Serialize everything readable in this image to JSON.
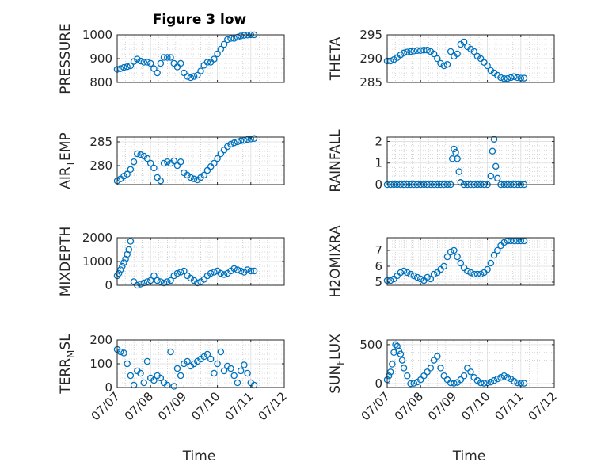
{
  "figure": {
    "title": "Figure 3 low"
  },
  "colors": {
    "marker": "#0072BD",
    "axis": "#262626",
    "grid": "#dfdfdf",
    "minor_grid": "#b8b8b8"
  },
  "chart_data": [
    {
      "type": "scatter",
      "ylabel": "PRESSURE",
      "ylim": [
        800,
        1000
      ],
      "yticks": [
        800,
        900,
        1000
      ],
      "xlim": [
        0,
        5
      ],
      "xticks": [
        0,
        1,
        2,
        3,
        4,
        5
      ],
      "x_tick_labels_shown": false,
      "x": [
        0,
        0.1,
        0.2,
        0.3,
        0.4,
        0.5,
        0.6,
        0.7,
        0.8,
        0.9,
        1.0,
        1.1,
        1.2,
        1.3,
        1.4,
        1.5,
        1.6,
        1.7,
        1.8,
        1.9,
        2.0,
        2.1,
        2.2,
        2.3,
        2.4,
        2.5,
        2.6,
        2.7,
        2.8,
        2.9,
        3.0,
        3.1,
        3.2,
        3.3,
        3.4,
        3.5,
        3.6,
        3.7,
        3.8,
        3.9,
        4.0,
        4.1
      ],
      "values": [
        855,
        858,
        863,
        866,
        870,
        888,
        898,
        890,
        885,
        885,
        880,
        858,
        840,
        880,
        905,
        905,
        905,
        880,
        865,
        880,
        840,
        825,
        820,
        825,
        830,
        848,
        872,
        885,
        885,
        898,
        920,
        940,
        960,
        980,
        985,
        985,
        990,
        995,
        998,
        999,
        1000,
        1000
      ]
    },
    {
      "type": "scatter",
      "ylabel": "THETA",
      "ylim": [
        285,
        295
      ],
      "yticks": [
        285,
        290,
        295
      ],
      "xlim": [
        0,
        5
      ],
      "xticks": [
        0,
        1,
        2,
        3,
        4,
        5
      ],
      "x_tick_labels_shown": false,
      "x": [
        0,
        0.1,
        0.2,
        0.3,
        0.4,
        0.5,
        0.6,
        0.7,
        0.8,
        0.9,
        1.0,
        1.1,
        1.2,
        1.3,
        1.4,
        1.5,
        1.6,
        1.7,
        1.8,
        1.9,
        2.0,
        2.1,
        2.2,
        2.3,
        2.4,
        2.5,
        2.6,
        2.7,
        2.8,
        2.9,
        3.0,
        3.1,
        3.2,
        3.3,
        3.4,
        3.5,
        3.6,
        3.7,
        3.8,
        3.9,
        4.0,
        4.1
      ],
      "values": [
        289.5,
        289.5,
        289.8,
        290.2,
        290.8,
        291.2,
        291.4,
        291.5,
        291.6,
        291.7,
        291.7,
        291.8,
        291.8,
        291.5,
        291.0,
        290.0,
        289.0,
        288.5,
        288.8,
        291.5,
        290.5,
        291.0,
        293.0,
        293.5,
        292.5,
        292.0,
        291.5,
        290.5,
        290.0,
        289.2,
        288.5,
        287.5,
        287.0,
        286.5,
        286.0,
        285.8,
        285.8,
        286.0,
        286.2,
        286.0,
        285.9,
        285.9
      ]
    },
    {
      "type": "scatter",
      "ylabel": "AIR_TEMP",
      "ylim": [
        276,
        286
      ],
      "yticks": [
        280,
        285
      ],
      "xlim": [
        0,
        5
      ],
      "xticks": [
        0,
        1,
        2,
        3,
        4,
        5
      ],
      "x_tick_labels_shown": false,
      "x": [
        0,
        0.1,
        0.2,
        0.3,
        0.4,
        0.5,
        0.6,
        0.7,
        0.8,
        0.9,
        1.0,
        1.1,
        1.2,
        1.3,
        1.4,
        1.5,
        1.6,
        1.7,
        1.8,
        1.9,
        2.0,
        2.1,
        2.2,
        2.3,
        2.4,
        2.5,
        2.6,
        2.7,
        2.8,
        2.9,
        3.0,
        3.1,
        3.2,
        3.3,
        3.4,
        3.5,
        3.6,
        3.7,
        3.8,
        3.9,
        4.0,
        4.1
      ],
      "values": [
        276.8,
        277.2,
        277.8,
        278.2,
        279.2,
        280.8,
        282.5,
        282.3,
        282.0,
        281.5,
        280.5,
        279.5,
        277.5,
        276.8,
        280.5,
        280.8,
        280.5,
        281.0,
        280.0,
        280.8,
        278.5,
        278.0,
        277.5,
        277.2,
        277.0,
        277.5,
        278.0,
        279.0,
        279.8,
        280.5,
        281.5,
        282.5,
        283.3,
        284.0,
        284.5,
        284.8,
        285.0,
        285.2,
        285.3,
        285.5,
        285.6,
        285.7
      ]
    },
    {
      "type": "scatter",
      "ylabel": "RAINFALL",
      "ylim": [
        0,
        2.2
      ],
      "yticks": [
        0,
        1,
        2
      ],
      "xlim": [
        0,
        5
      ],
      "xticks": [
        0,
        1,
        2,
        3,
        4,
        5
      ],
      "x_tick_labels_shown": false,
      "x": [
        0,
        0.1,
        0.2,
        0.3,
        0.4,
        0.5,
        0.6,
        0.7,
        0.8,
        0.9,
        1.0,
        1.1,
        1.2,
        1.3,
        1.4,
        1.5,
        1.6,
        1.7,
        1.8,
        1.9,
        1.95,
        2.0,
        2.05,
        2.1,
        2.15,
        2.2,
        2.3,
        2.4,
        2.5,
        2.6,
        2.7,
        2.8,
        2.9,
        3.0,
        3.1,
        3.15,
        3.2,
        3.25,
        3.3,
        3.4,
        3.5,
        3.6,
        3.7,
        3.8,
        3.9,
        4.0,
        4.1
      ],
      "values": [
        0,
        0,
        0,
        0,
        0,
        0,
        0,
        0,
        0,
        0,
        0,
        0,
        0,
        0,
        0,
        0,
        0,
        0,
        0,
        0,
        1.2,
        1.65,
        1.5,
        1.2,
        0.6,
        0.1,
        0,
        0,
        0,
        0,
        0,
        0,
        0,
        0,
        0.4,
        1.55,
        2.1,
        0.85,
        0.3,
        0,
        0,
        0,
        0,
        0,
        0,
        0,
        0
      ]
    },
    {
      "type": "scatter",
      "ylabel": "MIXDEPTH",
      "ylim": [
        0,
        2000
      ],
      "yticks": [
        0,
        1000,
        2000
      ],
      "xlim": [
        0,
        5
      ],
      "xticks": [
        0,
        1,
        2,
        3,
        4,
        5
      ],
      "x_tick_labels_shown": false,
      "x": [
        0,
        0.05,
        0.1,
        0.15,
        0.2,
        0.25,
        0.3,
        0.35,
        0.4,
        0.5,
        0.6,
        0.7,
        0.8,
        0.9,
        1.0,
        1.1,
        1.2,
        1.3,
        1.4,
        1.5,
        1.6,
        1.7,
        1.8,
        1.9,
        2.0,
        2.1,
        2.2,
        2.3,
        2.4,
        2.5,
        2.6,
        2.7,
        2.8,
        2.9,
        3.0,
        3.1,
        3.2,
        3.3,
        3.4,
        3.5,
        3.6,
        3.7,
        3.8,
        3.9,
        4.0,
        4.1
      ],
      "values": [
        400,
        500,
        650,
        800,
        950,
        1100,
        1300,
        1500,
        1850,
        150,
        0,
        50,
        100,
        150,
        200,
        400,
        200,
        150,
        100,
        150,
        200,
        400,
        500,
        550,
        600,
        400,
        300,
        200,
        100,
        150,
        250,
        400,
        500,
        550,
        600,
        500,
        450,
        500,
        600,
        700,
        650,
        600,
        550,
        650,
        600,
        600
      ]
    },
    {
      "type": "scatter",
      "ylabel": "H2OMIXRA",
      "ylim": [
        4.8,
        7.8
      ],
      "yticks": [
        5,
        6,
        7
      ],
      "xlim": [
        0,
        5
      ],
      "xticks": [
        0,
        1,
        2,
        3,
        4,
        5
      ],
      "x_tick_labels_shown": false,
      "x": [
        0,
        0.1,
        0.2,
        0.3,
        0.4,
        0.5,
        0.6,
        0.7,
        0.8,
        0.9,
        1.0,
        1.1,
        1.2,
        1.3,
        1.4,
        1.5,
        1.6,
        1.7,
        1.8,
        1.9,
        2.0,
        2.1,
        2.2,
        2.3,
        2.4,
        2.5,
        2.6,
        2.7,
        2.8,
        2.9,
        3.0,
        3.1,
        3.2,
        3.3,
        3.4,
        3.5,
        3.6,
        3.7,
        3.8,
        3.9,
        4.0,
        4.1
      ],
      "values": [
        5.1,
        5.1,
        5.2,
        5.4,
        5.6,
        5.7,
        5.6,
        5.5,
        5.4,
        5.3,
        5.2,
        5.1,
        5.3,
        5.2,
        5.5,
        5.6,
        5.8,
        6.0,
        6.6,
        6.9,
        7.0,
        6.6,
        6.2,
        5.9,
        5.7,
        5.6,
        5.5,
        5.5,
        5.5,
        5.6,
        5.8,
        6.2,
        6.7,
        7.0,
        7.3,
        7.5,
        7.6,
        7.6,
        7.6,
        7.6,
        7.6,
        7.6
      ]
    },
    {
      "type": "scatter",
      "ylabel": "TERR_MSL",
      "ylim": [
        0,
        200
      ],
      "yticks": [
        0,
        100,
        200
      ],
      "xlim": [
        0,
        5
      ],
      "xticks": [
        0,
        1,
        2,
        3,
        4,
        5
      ],
      "xtick_labels": [
        "07/07",
        "07/08",
        "07/09",
        "07/10",
        "07/11",
        "07/12"
      ],
      "xlabel": "Time",
      "x": [
        0,
        0.1,
        0.2,
        0.3,
        0.4,
        0.5,
        0.6,
        0.7,
        0.8,
        0.9,
        1.0,
        1.1,
        1.2,
        1.3,
        1.4,
        1.5,
        1.6,
        1.7,
        1.8,
        1.9,
        2.0,
        2.1,
        2.2,
        2.3,
        2.4,
        2.5,
        2.6,
        2.7,
        2.8,
        2.9,
        3.0,
        3.1,
        3.2,
        3.3,
        3.4,
        3.5,
        3.6,
        3.7,
        3.8,
        3.9,
        4.0,
        4.1
      ],
      "values": [
        160,
        150,
        145,
        100,
        50,
        10,
        70,
        60,
        20,
        110,
        40,
        30,
        50,
        40,
        20,
        10,
        150,
        5,
        80,
        50,
        100,
        110,
        90,
        100,
        110,
        120,
        130,
        140,
        120,
        60,
        100,
        150,
        70,
        90,
        80,
        50,
        20,
        70,
        95,
        60,
        20,
        10
      ]
    },
    {
      "type": "scatter",
      "ylabel": "SUN_FLUX",
      "ylim": [
        -50,
        560
      ],
      "yticks": [
        0,
        500
      ],
      "xlim": [
        0,
        5
      ],
      "xticks": [
        0,
        1,
        2,
        3,
        4,
        5
      ],
      "xtick_labels": [
        "07/07",
        "07/08",
        "07/09",
        "07/10",
        "07/11",
        "07/12"
      ],
      "xlabel": "Time",
      "x": [
        0,
        0.05,
        0.1,
        0.15,
        0.2,
        0.25,
        0.3,
        0.35,
        0.4,
        0.45,
        0.5,
        0.6,
        0.7,
        0.8,
        0.9,
        1.0,
        1.1,
        1.2,
        1.3,
        1.4,
        1.5,
        1.6,
        1.7,
        1.8,
        1.9,
        2.0,
        2.1,
        2.2,
        2.3,
        2.4,
        2.5,
        2.6,
        2.7,
        2.8,
        2.9,
        3.0,
        3.1,
        3.2,
        3.3,
        3.4,
        3.5,
        3.6,
        3.7,
        3.8,
        3.9,
        4.0,
        4.1
      ],
      "values": [
        50,
        100,
        150,
        250,
        400,
        500,
        480,
        420,
        380,
        300,
        200,
        100,
        0,
        5,
        20,
        50,
        100,
        150,
        200,
        300,
        350,
        200,
        100,
        50,
        10,
        5,
        15,
        50,
        100,
        200,
        150,
        80,
        40,
        10,
        5,
        10,
        20,
        40,
        60,
        80,
        100,
        80,
        60,
        30,
        10,
        5,
        5
      ]
    }
  ]
}
